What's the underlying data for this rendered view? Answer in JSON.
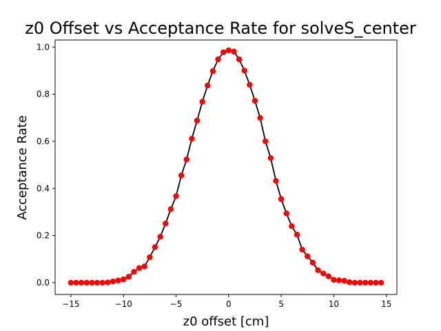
{
  "chart_data": {
    "type": "scatter",
    "title": "z0 Offset vs Acceptance Rate for solveS_center",
    "xlabel": "z0 offset [cm]",
    "ylabel": "Acceptance Rate",
    "xlim": [
      -16.5,
      16.0
    ],
    "ylim": [
      -0.05,
      1.03
    ],
    "xticks": [
      -15,
      -10,
      -5,
      0,
      5,
      10,
      15
    ],
    "xtick_labels": [
      "−15",
      "−10",
      "−5",
      "0",
      "5",
      "10",
      "15"
    ],
    "yticks": [
      0.0,
      0.2,
      0.4,
      0.6,
      0.8,
      1.0
    ],
    "ytick_labels": [
      "0.0",
      "0.2",
      "0.4",
      "0.6",
      "0.8",
      "1.0"
    ],
    "grid": false,
    "series": [
      {
        "marker_color": "#ff0000",
        "line_color": "#000000",
        "x": [
          -15.0,
          -14.5,
          -14.0,
          -13.5,
          -13.0,
          -12.5,
          -12.0,
          -11.5,
          -11.0,
          -10.5,
          -10.0,
          -9.5,
          -9.0,
          -8.5,
          -8.0,
          -7.5,
          -7.0,
          -6.5,
          -6.0,
          -5.5,
          -5.0,
          -4.5,
          -4.0,
          -3.5,
          -3.0,
          -2.5,
          -2.0,
          -1.5,
          -1.0,
          -0.5,
          0.0,
          0.5,
          1.0,
          1.5,
          2.0,
          2.5,
          3.0,
          3.5,
          4.0,
          4.5,
          5.0,
          5.5,
          6.0,
          6.5,
          7.0,
          7.5,
          8.0,
          8.5,
          9.0,
          9.5,
          10.0,
          10.5,
          11.0,
          11.5,
          12.0,
          12.5,
          13.0,
          13.5,
          14.0,
          14.5
        ],
        "y": [
          0.0,
          0.0,
          0.0,
          0.0,
          0.0,
          0.0,
          0.0,
          0.001,
          0.005,
          0.009,
          0.014,
          0.025,
          0.046,
          0.062,
          0.069,
          0.108,
          0.151,
          0.195,
          0.251,
          0.312,
          0.367,
          0.455,
          0.523,
          0.611,
          0.688,
          0.768,
          0.837,
          0.898,
          0.948,
          0.978,
          0.986,
          0.981,
          0.948,
          0.9,
          0.84,
          0.772,
          0.699,
          0.6,
          0.529,
          0.432,
          0.355,
          0.294,
          0.24,
          0.204,
          0.14,
          0.112,
          0.085,
          0.053,
          0.039,
          0.027,
          0.012,
          0.01,
          0.008,
          0.002,
          0.0,
          0.0,
          0.0,
          0.0,
          0.0,
          0.0
        ]
      }
    ]
  }
}
